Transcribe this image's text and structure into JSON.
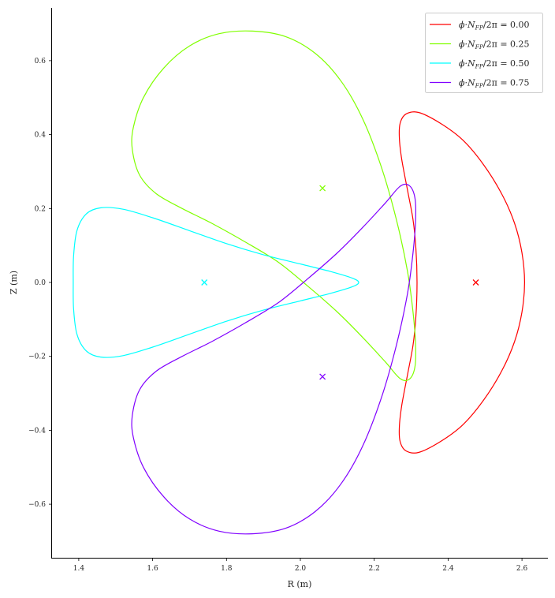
{
  "chart_data": {
    "type": "line",
    "title": "",
    "xlabel": "R (m)",
    "ylabel": "Z (m)",
    "xlim": [
      1.33,
      2.67
    ],
    "ylim": [
      -0.745,
      0.745
    ],
    "grid": false,
    "legend_position": "upper right",
    "xticks": [
      1.4,
      1.6,
      1.8,
      2.0,
      2.2,
      2.4,
      2.6
    ],
    "xtick_labels": [
      "1.4",
      "1.6",
      "1.8",
      "2.0",
      "2.2",
      "2.4",
      "2.6"
    ],
    "yticks": [
      -0.6,
      -0.4,
      -0.2,
      0.0,
      0.2,
      0.4,
      0.6
    ],
    "ytick_labels": [
      "−0.6",
      "−0.4",
      "−0.2",
      "0.0",
      "0.2",
      "0.4",
      "0.6"
    ],
    "series": [
      {
        "name": "ϕ · N_FP/2π = 0.00",
        "label": "ϕ·N",
        "sub": "FP",
        "suffix": "/2π = 0.00",
        "color": "#ff0000",
        "axis": [
          2.475,
          0.0
        ],
        "points": [
          [
            2.607,
            0.0
          ],
          [
            2.6,
            0.08
          ],
          [
            2.58,
            0.16
          ],
          [
            2.545,
            0.24
          ],
          [
            2.495,
            0.32
          ],
          [
            2.44,
            0.385
          ],
          [
            2.38,
            0.43
          ],
          [
            2.32,
            0.46
          ],
          [
            2.285,
            0.455
          ],
          [
            2.27,
            0.43
          ],
          [
            2.268,
            0.39
          ],
          [
            2.275,
            0.33
          ],
          [
            2.29,
            0.25
          ],
          [
            2.305,
            0.17
          ],
          [
            2.313,
            0.09
          ],
          [
            2.316,
            0.0
          ],
          [
            2.313,
            -0.09
          ],
          [
            2.305,
            -0.17
          ],
          [
            2.29,
            -0.25
          ],
          [
            2.275,
            -0.33
          ],
          [
            2.268,
            -0.39
          ],
          [
            2.27,
            -0.43
          ],
          [
            2.285,
            -0.455
          ],
          [
            2.32,
            -0.46
          ],
          [
            2.38,
            -0.43
          ],
          [
            2.44,
            -0.385
          ],
          [
            2.495,
            -0.32
          ],
          [
            2.545,
            -0.24
          ],
          [
            2.58,
            -0.16
          ],
          [
            2.6,
            -0.08
          ],
          [
            2.607,
            0.0
          ]
        ]
      },
      {
        "name": "ϕ · N_FP/2π = 0.25",
        "label": "ϕ·N",
        "sub": "FP",
        "suffix": "/2π = 0.25",
        "color": "#80ff00",
        "axis": [
          2.06,
          0.255
        ],
        "points": [
          [
            1.87,
            0.68
          ],
          [
            1.96,
            0.665
          ],
          [
            2.04,
            0.62
          ],
          [
            2.11,
            0.545
          ],
          [
            2.17,
            0.44
          ],
          [
            2.22,
            0.31
          ],
          [
            2.26,
            0.17
          ],
          [
            2.29,
            0.03
          ],
          [
            2.305,
            -0.08
          ],
          [
            2.312,
            -0.17
          ],
          [
            2.31,
            -0.23
          ],
          [
            2.295,
            -0.262
          ],
          [
            2.27,
            -0.26
          ],
          [
            2.23,
            -0.215
          ],
          [
            2.17,
            -0.15
          ],
          [
            2.1,
            -0.08
          ],
          [
            2.02,
            -0.01
          ],
          [
            1.94,
            0.055
          ],
          [
            1.85,
            0.11
          ],
          [
            1.76,
            0.16
          ],
          [
            1.68,
            0.2
          ],
          [
            1.61,
            0.24
          ],
          [
            1.565,
            0.29
          ],
          [
            1.545,
            0.36
          ],
          [
            1.548,
            0.42
          ],
          [
            1.575,
            0.5
          ],
          [
            1.63,
            0.58
          ],
          [
            1.7,
            0.64
          ],
          [
            1.78,
            0.673
          ],
          [
            1.87,
            0.68
          ]
        ]
      },
      {
        "name": "ϕ · N_FP/2π = 0.50",
        "label": "ϕ·N",
        "sub": "FP",
        "suffix": "/2π = 0.50",
        "color": "#00ffff",
        "axis": [
          1.74,
          0.0
        ],
        "points": [
          [
            2.158,
            0.0
          ],
          [
            2.14,
            0.012
          ],
          [
            2.08,
            0.03
          ],
          [
            2.0,
            0.05
          ],
          [
            1.9,
            0.075
          ],
          [
            1.8,
            0.105
          ],
          [
            1.7,
            0.14
          ],
          [
            1.6,
            0.175
          ],
          [
            1.52,
            0.198
          ],
          [
            1.46,
            0.202
          ],
          [
            1.42,
            0.185
          ],
          [
            1.395,
            0.14
          ],
          [
            1.386,
            0.07
          ],
          [
            1.385,
            0.0
          ],
          [
            1.386,
            -0.07
          ],
          [
            1.395,
            -0.14
          ],
          [
            1.42,
            -0.185
          ],
          [
            1.46,
            -0.202
          ],
          [
            1.52,
            -0.198
          ],
          [
            1.6,
            -0.175
          ],
          [
            1.7,
            -0.14
          ],
          [
            1.8,
            -0.105
          ],
          [
            1.9,
            -0.075
          ],
          [
            2.0,
            -0.05
          ],
          [
            2.08,
            -0.03
          ],
          [
            2.14,
            -0.012
          ],
          [
            2.158,
            0.0
          ]
        ]
      },
      {
        "name": "ϕ · N_FP/2π = 0.75",
        "label": "ϕ·N",
        "sub": "FP",
        "suffix": "/2π = 0.75",
        "color": "#8000ff",
        "axis": [
          2.06,
          -0.255
        ],
        "points": [
          [
            1.87,
            -0.68
          ],
          [
            1.96,
            -0.665
          ],
          [
            2.04,
            -0.62
          ],
          [
            2.11,
            -0.545
          ],
          [
            2.17,
            -0.44
          ],
          [
            2.22,
            -0.31
          ],
          [
            2.26,
            -0.17
          ],
          [
            2.29,
            -0.03
          ],
          [
            2.305,
            0.08
          ],
          [
            2.312,
            0.17
          ],
          [
            2.31,
            0.23
          ],
          [
            2.295,
            0.262
          ],
          [
            2.27,
            0.26
          ],
          [
            2.23,
            0.215
          ],
          [
            2.17,
            0.15
          ],
          [
            2.1,
            0.08
          ],
          [
            2.02,
            0.01
          ],
          [
            1.94,
            -0.055
          ],
          [
            1.85,
            -0.11
          ],
          [
            1.76,
            -0.16
          ],
          [
            1.68,
            -0.2
          ],
          [
            1.61,
            -0.24
          ],
          [
            1.565,
            -0.29
          ],
          [
            1.545,
            -0.36
          ],
          [
            1.548,
            -0.42
          ],
          [
            1.575,
            -0.5
          ],
          [
            1.63,
            -0.58
          ],
          [
            1.7,
            -0.64
          ],
          [
            1.78,
            -0.673
          ],
          [
            1.87,
            -0.68
          ]
        ]
      }
    ]
  }
}
